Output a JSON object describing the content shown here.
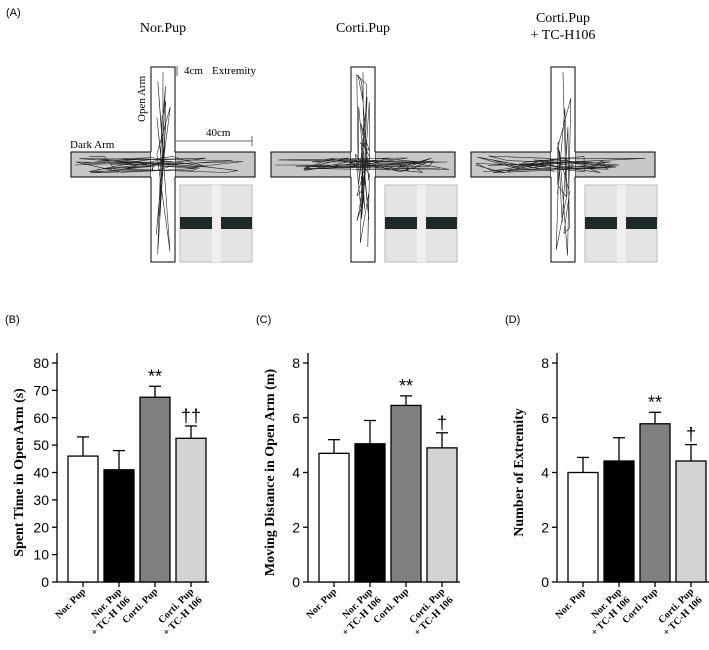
{
  "panel_a": {
    "label": "(A)",
    "groups": [
      "Nor.Pup",
      "Corti.Pup",
      "Corti.Pup\n+ TC-H106"
    ],
    "extremity_size": "4cm",
    "extremity": "Extremity",
    "open_arm": "Open Arm",
    "dark_arm": "Dark Arm",
    "arm_length": "40cm"
  },
  "chart_data": [
    {
      "type": "bar",
      "panel": "(B)",
      "y_label": "Spent Time in Open Arm (s)",
      "categories": [
        "Nor. Pup",
        "Nor. Pup\n+ TC-H 106",
        "Corti. Pup",
        "Corti. Pup\n+ TC-H 106"
      ],
      "values": [
        46,
        41,
        67.5,
        52.5
      ],
      "errors": [
        7,
        7,
        4,
        4.5
      ],
      "colors": [
        "#ffffff",
        "#000000",
        "#808080",
        "#d3d3d3"
      ],
      "ylim": [
        0,
        80
      ],
      "yticks": [
        0,
        10,
        20,
        30,
        40,
        50,
        60,
        70,
        80
      ],
      "annotations": [
        {
          "category": "Corti. Pup",
          "text": "**"
        },
        {
          "category": "Corti. Pup\n+ TC-H 106",
          "text": "††"
        }
      ]
    },
    {
      "type": "bar",
      "panel": "(C)",
      "y_label": "Moving Distance in Open Arm (m)",
      "categories": [
        "Nor. Pup",
        "Nor. Pup\n+ TC-H 106",
        "Corti. Pup",
        "Corti. Pup\n+ TC-H 106"
      ],
      "values": [
        4.7,
        5.05,
        6.45,
        4.9
      ],
      "errors": [
        0.5,
        0.85,
        0.35,
        0.55
      ],
      "colors": [
        "#ffffff",
        "#000000",
        "#808080",
        "#d3d3d3"
      ],
      "ylim": [
        0,
        8
      ],
      "yticks": [
        0,
        2,
        4,
        6,
        8
      ],
      "annotations": [
        {
          "category": "Corti. Pup",
          "text": "**"
        },
        {
          "category": "Corti. Pup\n+ TC-H 106",
          "text": "†"
        }
      ]
    },
    {
      "type": "bar",
      "panel": "(D)",
      "y_label": "Number of Extremity",
      "categories": [
        "Nor. Pup",
        "Nor. Pup\n+ TC-H 106",
        "Corti. Pup",
        "Corti. Pup\n+ TC-H 106"
      ],
      "values": [
        4.0,
        4.42,
        5.78,
        4.42
      ],
      "errors": [
        0.55,
        0.85,
        0.42,
        0.6
      ],
      "colors": [
        "#ffffff",
        "#000000",
        "#808080",
        "#d3d3d3"
      ],
      "ylim": [
        0,
        8
      ],
      "yticks": [
        0,
        2,
        4,
        6,
        8
      ],
      "annotations": [
        {
          "category": "Corti. Pup",
          "text": "**"
        },
        {
          "category": "Corti. Pup\n+ TC-H 106",
          "text": "†"
        }
      ]
    }
  ]
}
